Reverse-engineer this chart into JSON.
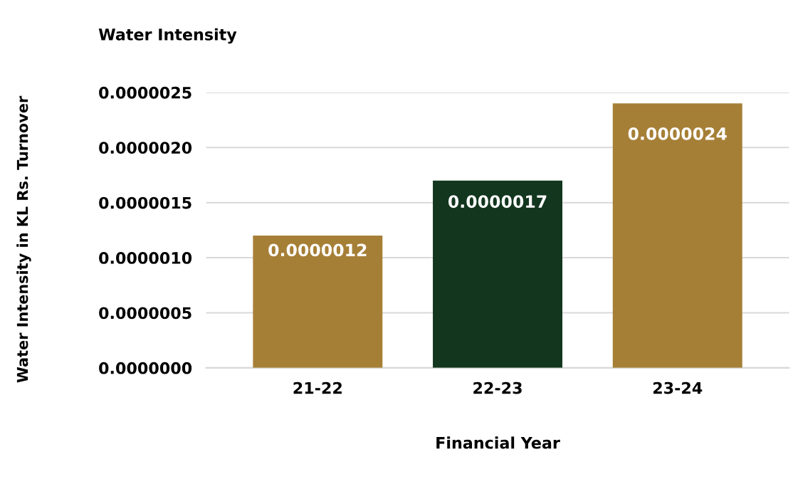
{
  "chart_data": {
    "type": "bar",
    "title": "Water Intensity",
    "xlabel": "Financial Year",
    "ylabel": "Water Intensity in KL Rs. Turnover",
    "categories": [
      "21-22",
      "22-23",
      "23-24"
    ],
    "values": [
      1.2e-06,
      1.7e-06,
      2.4e-06
    ],
    "value_labels": [
      "0.0000012",
      "0.0000017",
      "0.0000024"
    ],
    "colors": [
      "#a67f37",
      "#12361e",
      "#a67f37"
    ],
    "ylim": [
      0,
      2.5e-06
    ],
    "yticks": [
      {
        "value": 0,
        "label": "0.0000000"
      },
      {
        "value": 5e-07,
        "label": "0.0000005"
      },
      {
        "value": 1e-06,
        "label": "0.0000010"
      },
      {
        "value": 1.5e-06,
        "label": "0.0000015"
      },
      {
        "value": 2e-06,
        "label": "0.0000020"
      },
      {
        "value": 2.5e-06,
        "label": "0.0000025"
      }
    ],
    "grid": "y",
    "legend": false
  }
}
